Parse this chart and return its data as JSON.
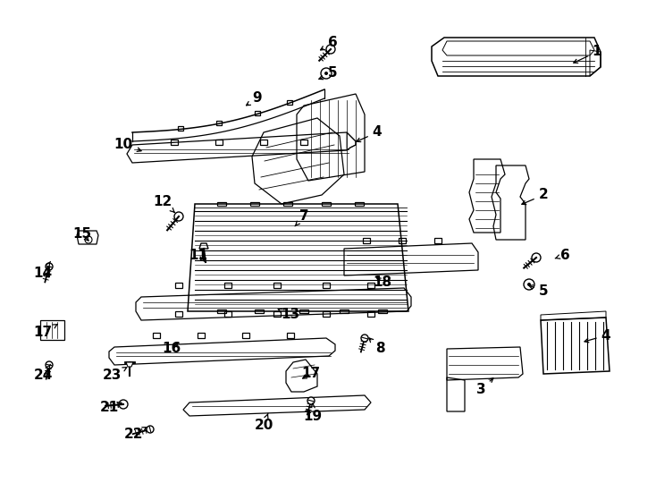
{
  "background_color": "#ffffff",
  "line_color": "#000000",
  "text_color": "#000000",
  "font_size_number": 11,
  "parts_labels": [
    [
      1,
      668,
      58,
      638,
      72
    ],
    [
      2,
      608,
      218,
      580,
      230
    ],
    [
      3,
      538,
      435,
      555,
      420
    ],
    [
      4,
      422,
      148,
      395,
      160
    ],
    [
      4,
      678,
      375,
      650,
      383
    ],
    [
      5,
      372,
      82,
      353,
      90
    ],
    [
      5,
      608,
      325,
      588,
      318
    ],
    [
      6,
      372,
      48,
      355,
      58
    ],
    [
      6,
      632,
      285,
      618,
      290
    ],
    [
      7,
      340,
      242,
      328,
      255
    ],
    [
      8,
      425,
      390,
      410,
      375
    ],
    [
      9,
      288,
      110,
      272,
      120
    ],
    [
      10,
      138,
      162,
      162,
      170
    ],
    [
      11,
      222,
      285,
      232,
      295
    ],
    [
      12,
      182,
      225,
      198,
      240
    ],
    [
      13,
      325,
      352,
      310,
      345
    ],
    [
      14,
      48,
      305,
      58,
      290
    ],
    [
      15,
      92,
      262,
      102,
      272
    ],
    [
      16,
      192,
      390,
      202,
      380
    ],
    [
      17,
      48,
      372,
      65,
      362
    ],
    [
      17,
      348,
      418,
      335,
      425
    ],
    [
      18,
      428,
      315,
      418,
      308
    ],
    [
      19,
      350,
      465,
      350,
      450
    ],
    [
      20,
      295,
      475,
      300,
      462
    ],
    [
      21,
      122,
      455,
      137,
      450
    ],
    [
      22,
      150,
      485,
      165,
      477
    ],
    [
      23,
      125,
      420,
      143,
      410
    ],
    [
      24,
      48,
      420,
      58,
      405
    ]
  ]
}
